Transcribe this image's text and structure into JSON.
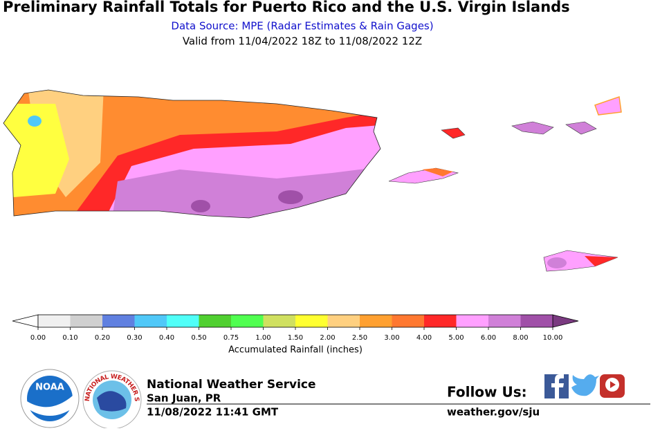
{
  "header": {
    "title": "Preliminary Rainfall Totals for Puerto Rico and the U.S. Virgin Islands",
    "subtitle": "Data Source: MPE (Radar Estimates & Rain Gages)",
    "valid": "Valid from 11/04/2022 18Z to 11/08/2022 12Z"
  },
  "legend": {
    "label": "Accumulated Rainfall (inches)",
    "ticks": [
      {
        "value": 0,
        "label": "0.00"
      },
      {
        "value": 0.1,
        "label": "0.10"
      },
      {
        "value": 0.2,
        "label": "0.20"
      },
      {
        "value": 0.3,
        "label": "0.30"
      },
      {
        "value": 0.4,
        "label": "0.40"
      },
      {
        "value": 0.5,
        "label": "0.50"
      },
      {
        "value": 0.75,
        "label": "0.75"
      },
      {
        "value": 1,
        "label": "1.00"
      },
      {
        "value": 1.5,
        "label": "1.50"
      },
      {
        "value": 2,
        "label": "2.00"
      },
      {
        "value": 2.5,
        "label": "2.50"
      },
      {
        "value": 3,
        "label": "3.00"
      },
      {
        "value": 4,
        "label": "4.00"
      },
      {
        "value": 5,
        "label": "5.00"
      },
      {
        "value": 6,
        "label": "6.00"
      },
      {
        "value": 8,
        "label": "8.00"
      },
      {
        "value": 10,
        "label": "10.00"
      }
    ],
    "colors": [
      "#f0f0f0",
      "#d0d0d0",
      "#6080e0",
      "#50c8f8",
      "#50fff8",
      "#50d030",
      "#50ff50",
      "#d0e060",
      "#ffff30",
      "#ffd080",
      "#ffa030",
      "#ff7830",
      "#ff2828",
      "#ffa0ff",
      "#d080d8",
      "#a050a8"
    ],
    "under_color": "#ffffff",
    "over_color": "#7a3a80"
  },
  "logos": {
    "noaa": "NOAA",
    "nws": "NATIONAL WEATHER SERVICE"
  },
  "footer": {
    "agency": "National Weather Service",
    "office": "San Juan, PR",
    "issued": "11/08/2022 11:41 GMT",
    "follow": "Follow Us:",
    "url": "weather.gov/sju"
  }
}
